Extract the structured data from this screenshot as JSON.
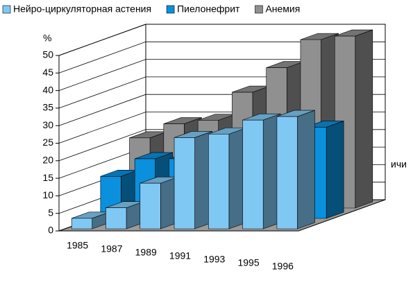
{
  "chart_data": {
    "type": "bar3d",
    "categories": [
      "1985",
      "1987",
      "1989",
      "1991",
      "1993",
      "1995",
      "1996"
    ],
    "series": [
      {
        "name": "Нейро-циркуляторная астения",
        "color": "#80c8f4",
        "values": [
          3,
          6,
          13,
          26,
          27,
          31,
          32
        ]
      },
      {
        "name": "Пиелонефрит",
        "color": "#0a90dc",
        "values": [
          12,
          17,
          17,
          18,
          21,
          20,
          26
        ]
      },
      {
        "name": "Анемия",
        "color": "#909090",
        "values": [
          20,
          24,
          25,
          33,
          40,
          48,
          49
        ]
      }
    ],
    "y_unit": "%",
    "side_label": "ичи",
    "ylim": [
      0,
      50
    ],
    "yticks": [
      0,
      5,
      10,
      15,
      20,
      25,
      30,
      35,
      40,
      45,
      50
    ],
    "grid": true
  }
}
